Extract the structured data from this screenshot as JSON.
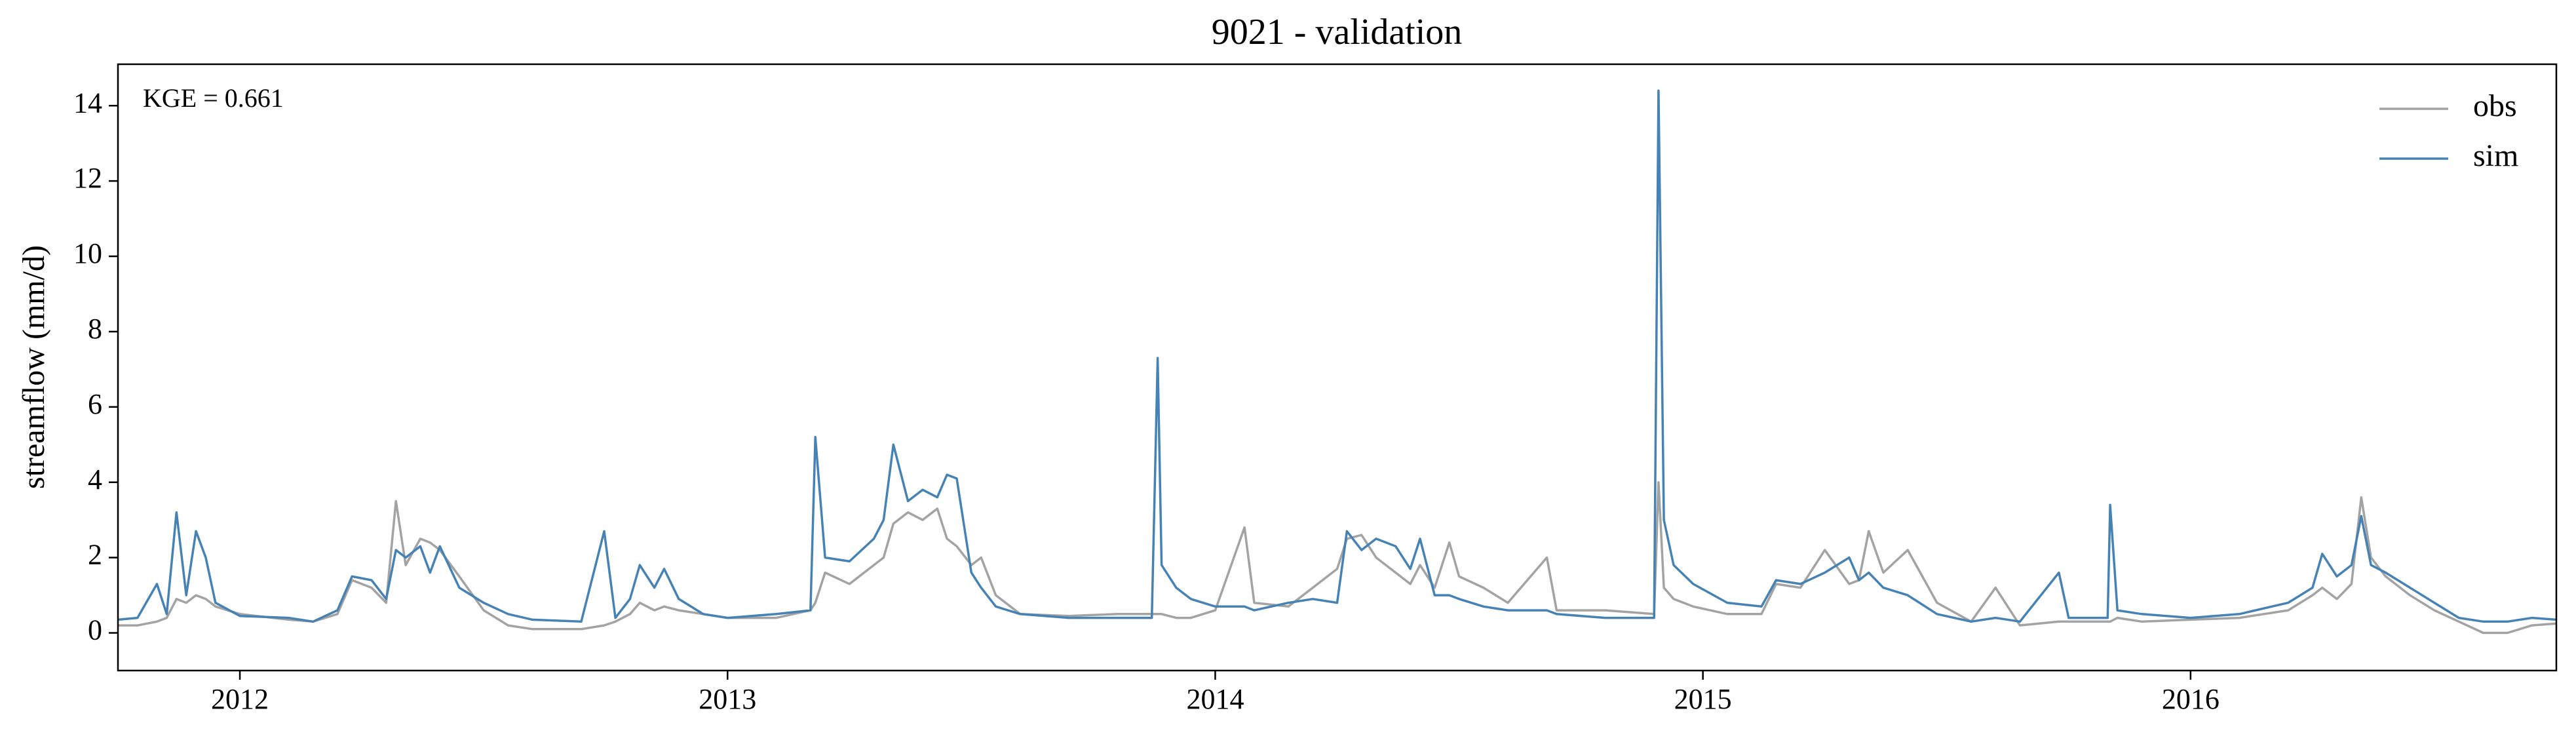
{
  "chart_data": {
    "type": "line",
    "title": "9021 - validation",
    "ylabel": "streamflow (mm/d)",
    "annotation": "KGE = 0.661",
    "legend": "upper right",
    "xlim": [
      2011.75,
      2016.75
    ],
    "xticks": [
      2012,
      2013,
      2014,
      2015,
      2016
    ],
    "ylim": [
      -1,
      15.1
    ],
    "yticks": [
      0,
      2,
      4,
      6,
      8,
      10,
      12,
      14
    ],
    "x": [
      2011.75,
      2011.79,
      2011.83,
      2011.85,
      2011.87,
      2011.89,
      2011.91,
      2011.93,
      2011.95,
      2012.0,
      2012.1,
      2012.15,
      2012.2,
      2012.23,
      2012.27,
      2012.3,
      2012.32,
      2012.34,
      2012.37,
      2012.39,
      2012.41,
      2012.45,
      2012.5,
      2012.55,
      2012.6,
      2012.7,
      2012.747,
      2012.77,
      2012.8,
      2012.82,
      2012.85,
      2012.87,
      2012.9,
      2012.95,
      2013.0,
      2013.1,
      2013.17,
      2013.18,
      2013.2,
      2013.25,
      2013.3,
      2013.32,
      2013.34,
      2013.37,
      2013.4,
      2013.43,
      2013.45,
      2013.47,
      2013.5,
      2013.52,
      2013.55,
      2013.6,
      2013.7,
      2013.8,
      2013.87,
      2013.882,
      2013.89,
      2013.92,
      2013.95,
      2014.0,
      2014.06,
      2014.08,
      2014.15,
      2014.2,
      2014.25,
      2014.27,
      2014.3,
      2014.33,
      2014.37,
      2014.4,
      2014.42,
      2014.45,
      2014.48,
      2014.5,
      2014.55,
      2014.6,
      2014.68,
      2014.7,
      2014.8,
      2014.9,
      2014.909,
      2014.92,
      2014.94,
      2014.98,
      2015.05,
      2015.12,
      2015.15,
      2015.2,
      2015.25,
      2015.3,
      2015.32,
      2015.34,
      2015.37,
      2015.42,
      2015.48,
      2015.55,
      2015.6,
      2015.65,
      2015.73,
      2015.75,
      2015.83,
      2015.835,
      2015.85,
      2015.9,
      2016.0,
      2016.1,
      2016.2,
      2016.25,
      2016.27,
      2016.3,
      2016.33,
      2016.35,
      2016.37,
      2016.4,
      2016.45,
      2016.5,
      2016.55,
      2016.6,
      2016.65,
      2016.7,
      2016.75
    ],
    "series": [
      {
        "name": "obs",
        "color": "#a3a3a3",
        "values": [
          0.2,
          0.2,
          0.3,
          0.4,
          0.9,
          0.8,
          1.0,
          0.9,
          0.7,
          0.5,
          0.35,
          0.3,
          0.5,
          1.4,
          1.2,
          0.8,
          3.5,
          1.8,
          2.5,
          2.4,
          2.2,
          1.5,
          0.6,
          0.2,
          0.1,
          0.1,
          0.2,
          0.3,
          0.5,
          0.8,
          0.6,
          0.7,
          0.6,
          0.5,
          0.4,
          0.4,
          0.6,
          0.8,
          1.6,
          1.3,
          1.8,
          2.0,
          2.9,
          3.2,
          3.0,
          3.3,
          2.5,
          2.3,
          1.8,
          2.0,
          1.0,
          0.5,
          0.45,
          0.5,
          0.5,
          0.5,
          0.5,
          0.4,
          0.4,
          0.6,
          2.8,
          0.8,
          0.7,
          1.2,
          1.7,
          2.5,
          2.6,
          2.0,
          1.6,
          1.3,
          1.8,
          1.2,
          2.4,
          1.5,
          1.2,
          0.8,
          2.0,
          0.6,
          0.6,
          0.5,
          4.0,
          1.2,
          0.9,
          0.7,
          0.5,
          0.5,
          1.3,
          1.2,
          2.2,
          1.3,
          1.4,
          2.7,
          1.6,
          2.2,
          0.8,
          0.3,
          1.2,
          0.2,
          0.3,
          0.3,
          0.3,
          0.3,
          0.4,
          0.3,
          0.35,
          0.4,
          0.6,
          1.0,
          1.2,
          0.9,
          1.3,
          3.6,
          2.0,
          1.5,
          1.0,
          0.6,
          0.3,
          0.0,
          0.0,
          0.2,
          0.25
        ]
      },
      {
        "name": "sim",
        "color": "#4682b4",
        "values": [
          0.35,
          0.4,
          1.3,
          0.5,
          3.2,
          1.0,
          2.7,
          2.0,
          0.8,
          0.45,
          0.4,
          0.3,
          0.6,
          1.5,
          1.4,
          0.9,
          2.2,
          2.0,
          2.3,
          1.6,
          2.3,
          1.2,
          0.8,
          0.5,
          0.35,
          0.3,
          2.7,
          0.4,
          0.9,
          1.8,
          1.2,
          1.7,
          0.9,
          0.5,
          0.4,
          0.5,
          0.6,
          5.2,
          2.0,
          1.9,
          2.5,
          3.0,
          5.0,
          3.5,
          3.8,
          3.6,
          4.2,
          4.1,
          1.6,
          1.2,
          0.7,
          0.5,
          0.4,
          0.4,
          0.4,
          7.3,
          1.8,
          1.2,
          0.9,
          0.7,
          0.7,
          0.6,
          0.8,
          0.9,
          0.8,
          2.7,
          2.2,
          2.5,
          2.3,
          1.7,
          2.5,
          1.0,
          1.0,
          0.9,
          0.7,
          0.6,
          0.6,
          0.5,
          0.4,
          0.4,
          14.4,
          3.0,
          1.8,
          1.3,
          0.8,
          0.7,
          1.4,
          1.3,
          1.6,
          2.0,
          1.4,
          1.6,
          1.2,
          1.0,
          0.5,
          0.3,
          0.4,
          0.3,
          1.6,
          0.4,
          0.4,
          3.4,
          0.6,
          0.5,
          0.4,
          0.5,
          0.8,
          1.2,
          2.1,
          1.5,
          1.8,
          3.1,
          1.8,
          1.6,
          1.2,
          0.8,
          0.4,
          0.3,
          0.3,
          0.4,
          0.35
        ]
      }
    ]
  }
}
